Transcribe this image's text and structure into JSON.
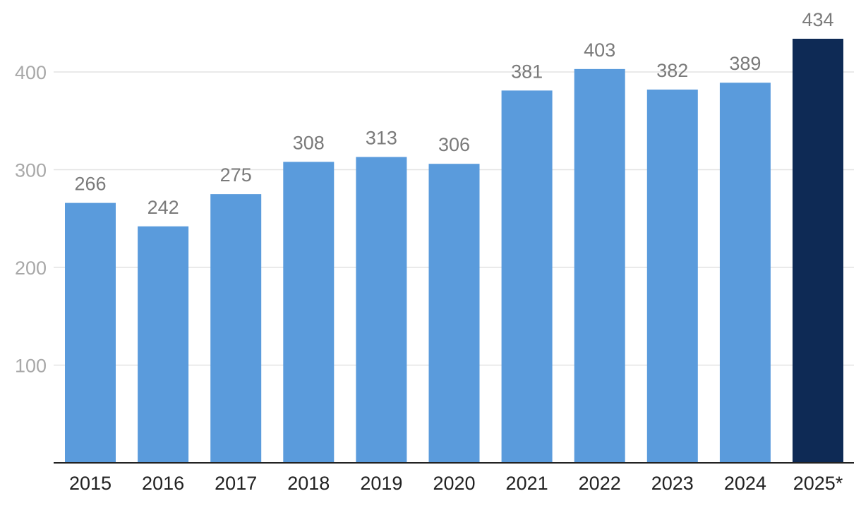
{
  "chart_data": {
    "type": "bar",
    "categories": [
      "2015",
      "2016",
      "2017",
      "2018",
      "2019",
      "2020",
      "2021",
      "2022",
      "2023",
      "2024",
      "2025*"
    ],
    "values": [
      266,
      242,
      275,
      308,
      313,
      306,
      381,
      403,
      382,
      389,
      434
    ],
    "data_labels": [
      "266",
      "242",
      "275",
      "308",
      "313",
      "306",
      "381",
      "403",
      "382",
      "389",
      "434"
    ],
    "yticks": [
      100,
      200,
      300,
      400
    ],
    "ylim": [
      0,
      450
    ],
    "grid": true,
    "legend": "none",
    "colors": {
      "bar": "#5a9bdc",
      "highlight": "#0e2a55",
      "highlight_categories": [
        "2025*"
      ]
    }
  }
}
